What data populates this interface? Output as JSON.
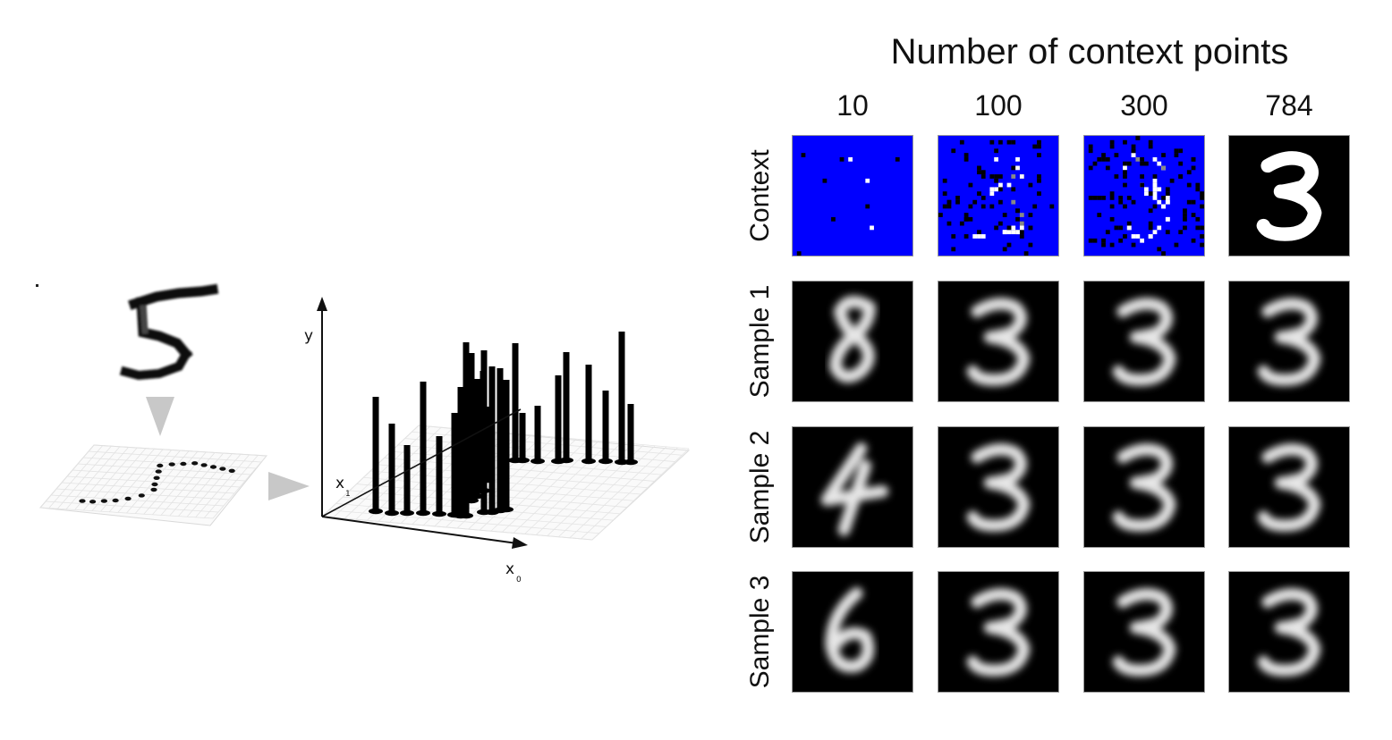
{
  "pipeline": {
    "axis_y": "y",
    "axis_x0": "x",
    "axis_x0_sub": "0",
    "axis_x1": "x",
    "axis_x1_sub": "1",
    "digit_shown": "5"
  },
  "grid": {
    "title": "Number of context points",
    "columns": [
      "10",
      "100",
      "300",
      "784"
    ],
    "rows": [
      "Context",
      "Sample 1",
      "Sample 2",
      "Sample 3"
    ],
    "cells": [
      [
        "blue-masked",
        "blue-masked",
        "blue-masked",
        "3"
      ],
      [
        "8",
        "3",
        "3",
        "3"
      ],
      [
        "4",
        "3",
        "3",
        "3"
      ],
      [
        "6",
        "3",
        "3",
        "3"
      ]
    ],
    "mask_color": "#0000ff"
  }
}
